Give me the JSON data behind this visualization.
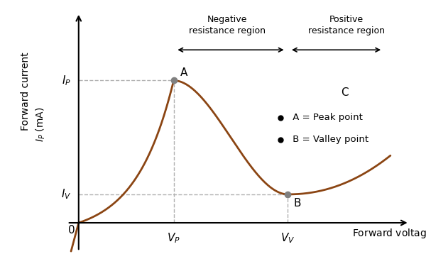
{
  "xlabel": "Forward voltage ($V_F$)",
  "ylabel_line1": "Forward current",
  "ylabel_line2": "$I_P$ (mA)",
  "curve_color": "#8B4513",
  "background_color": "#ffffff",
  "peak_x": 2.5,
  "peak_y": 6.5,
  "valley_x": 5.5,
  "valley_y": 1.3,
  "point_color": "#808080",
  "dashed_color": "#b0b0b0",
  "point_A_label": "A",
  "point_B_label": "B",
  "point_C_label": "C",
  "IP_label": "$I_P$",
  "IV_label": "$I_V$",
  "VP_label": "$V_P$",
  "VV_label": "$V_V$",
  "legend_A": " A = Peak point",
  "legend_B": " B = Valley point",
  "xlim": [
    -0.5,
    8.8
  ],
  "ylim": [
    -1.8,
    9.8
  ]
}
